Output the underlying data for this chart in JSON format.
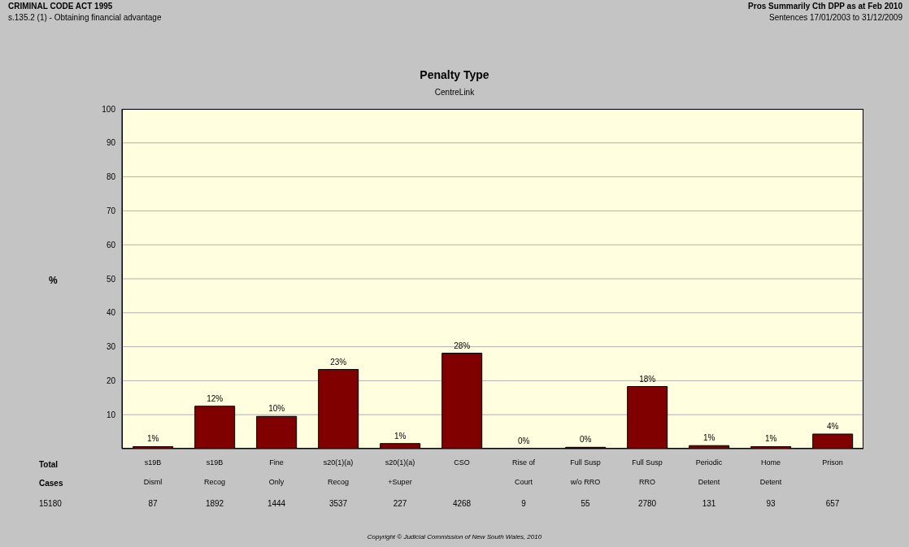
{
  "chart_data": {
    "type": "bar",
    "title": "Penalty Type",
    "subtitle": "CentreLink",
    "ylabel": "%",
    "categories": [
      "s19B\nDisml",
      "s19B\nRecog",
      "Fine\nOnly",
      "s20(1)(a)\nRecog",
      "s20(1)(a)\n+Super",
      "CSO",
      "Rise of\nCourt",
      "Full Susp\nw/o RRO",
      "Full Susp\nRRO",
      "Periodic\nDetent",
      "Home\nDetent",
      "Prison"
    ],
    "values": [
      0.6,
      12.5,
      9.5,
      23.3,
      1.5,
      28.1,
      0.1,
      0.4,
      18.3,
      0.9,
      0.6,
      4.3
    ],
    "value_labels": [
      "1%",
      "12%",
      "10%",
      "23%",
      "1%",
      "28%",
      "0%",
      "0%",
      "18%",
      "1%",
      "1%",
      "4%"
    ],
    "color": "#800000",
    "ylim": [
      0,
      100
    ],
    "yticks": [
      {
        "value": 0,
        "label": null
      },
      10,
      20,
      30,
      40,
      50,
      60,
      70,
      80,
      90,
      100
    ],
    "grid": "y",
    "legend": false,
    "annotations": [
      "CRIMINAL CODE ACT 1995",
      "s.135.2 (1) - Obtaining financial advantage",
      "Pros Summarily Cth DPP as at Feb 2010",
      "Sentences 17/01/2003 to 31/12/2009",
      "Total",
      "Cases",
      "15180",
      "Copyright © Judicial Commission of New South Wales, 2010",
      "87",
      "1892",
      "1444",
      "3537",
      "227",
      "4268",
      "9",
      "55",
      "2780",
      "131",
      "93",
      "657"
    ]
  }
}
